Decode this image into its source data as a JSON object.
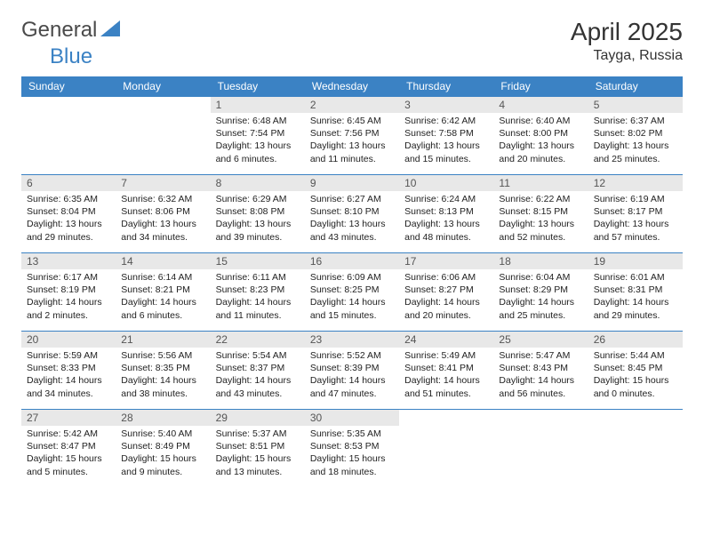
{
  "logo": {
    "general": "General",
    "blue": "Blue"
  },
  "title": "April 2025",
  "location": "Tayga, Russia",
  "colors": {
    "header_bg": "#3b82c4",
    "header_text": "#ffffff",
    "daynum_bg": "#e8e8e8",
    "body_text": "#222222",
    "border": "#3b82c4"
  },
  "weekdays": [
    "Sunday",
    "Monday",
    "Tuesday",
    "Wednesday",
    "Thursday",
    "Friday",
    "Saturday"
  ],
  "weeks": [
    [
      null,
      null,
      {
        "n": "1",
        "sr": "6:48 AM",
        "ss": "7:54 PM",
        "dl": "13 hours and 6 minutes."
      },
      {
        "n": "2",
        "sr": "6:45 AM",
        "ss": "7:56 PM",
        "dl": "13 hours and 11 minutes."
      },
      {
        "n": "3",
        "sr": "6:42 AM",
        "ss": "7:58 PM",
        "dl": "13 hours and 15 minutes."
      },
      {
        "n": "4",
        "sr": "6:40 AM",
        "ss": "8:00 PM",
        "dl": "13 hours and 20 minutes."
      },
      {
        "n": "5",
        "sr": "6:37 AM",
        "ss": "8:02 PM",
        "dl": "13 hours and 25 minutes."
      }
    ],
    [
      {
        "n": "6",
        "sr": "6:35 AM",
        "ss": "8:04 PM",
        "dl": "13 hours and 29 minutes."
      },
      {
        "n": "7",
        "sr": "6:32 AM",
        "ss": "8:06 PM",
        "dl": "13 hours and 34 minutes."
      },
      {
        "n": "8",
        "sr": "6:29 AM",
        "ss": "8:08 PM",
        "dl": "13 hours and 39 minutes."
      },
      {
        "n": "9",
        "sr": "6:27 AM",
        "ss": "8:10 PM",
        "dl": "13 hours and 43 minutes."
      },
      {
        "n": "10",
        "sr": "6:24 AM",
        "ss": "8:13 PM",
        "dl": "13 hours and 48 minutes."
      },
      {
        "n": "11",
        "sr": "6:22 AM",
        "ss": "8:15 PM",
        "dl": "13 hours and 52 minutes."
      },
      {
        "n": "12",
        "sr": "6:19 AM",
        "ss": "8:17 PM",
        "dl": "13 hours and 57 minutes."
      }
    ],
    [
      {
        "n": "13",
        "sr": "6:17 AM",
        "ss": "8:19 PM",
        "dl": "14 hours and 2 minutes."
      },
      {
        "n": "14",
        "sr": "6:14 AM",
        "ss": "8:21 PM",
        "dl": "14 hours and 6 minutes."
      },
      {
        "n": "15",
        "sr": "6:11 AM",
        "ss": "8:23 PM",
        "dl": "14 hours and 11 minutes."
      },
      {
        "n": "16",
        "sr": "6:09 AM",
        "ss": "8:25 PM",
        "dl": "14 hours and 15 minutes."
      },
      {
        "n": "17",
        "sr": "6:06 AM",
        "ss": "8:27 PM",
        "dl": "14 hours and 20 minutes."
      },
      {
        "n": "18",
        "sr": "6:04 AM",
        "ss": "8:29 PM",
        "dl": "14 hours and 25 minutes."
      },
      {
        "n": "19",
        "sr": "6:01 AM",
        "ss": "8:31 PM",
        "dl": "14 hours and 29 minutes."
      }
    ],
    [
      {
        "n": "20",
        "sr": "5:59 AM",
        "ss": "8:33 PM",
        "dl": "14 hours and 34 minutes."
      },
      {
        "n": "21",
        "sr": "5:56 AM",
        "ss": "8:35 PM",
        "dl": "14 hours and 38 minutes."
      },
      {
        "n": "22",
        "sr": "5:54 AM",
        "ss": "8:37 PM",
        "dl": "14 hours and 43 minutes."
      },
      {
        "n": "23",
        "sr": "5:52 AM",
        "ss": "8:39 PM",
        "dl": "14 hours and 47 minutes."
      },
      {
        "n": "24",
        "sr": "5:49 AM",
        "ss": "8:41 PM",
        "dl": "14 hours and 51 minutes."
      },
      {
        "n": "25",
        "sr": "5:47 AM",
        "ss": "8:43 PM",
        "dl": "14 hours and 56 minutes."
      },
      {
        "n": "26",
        "sr": "5:44 AM",
        "ss": "8:45 PM",
        "dl": "15 hours and 0 minutes."
      }
    ],
    [
      {
        "n": "27",
        "sr": "5:42 AM",
        "ss": "8:47 PM",
        "dl": "15 hours and 5 minutes."
      },
      {
        "n": "28",
        "sr": "5:40 AM",
        "ss": "8:49 PM",
        "dl": "15 hours and 9 minutes."
      },
      {
        "n": "29",
        "sr": "5:37 AM",
        "ss": "8:51 PM",
        "dl": "15 hours and 13 minutes."
      },
      {
        "n": "30",
        "sr": "5:35 AM",
        "ss": "8:53 PM",
        "dl": "15 hours and 18 minutes."
      },
      null,
      null,
      null
    ]
  ],
  "labels": {
    "sunrise": "Sunrise: ",
    "sunset": "Sunset: ",
    "daylight": "Daylight: "
  }
}
